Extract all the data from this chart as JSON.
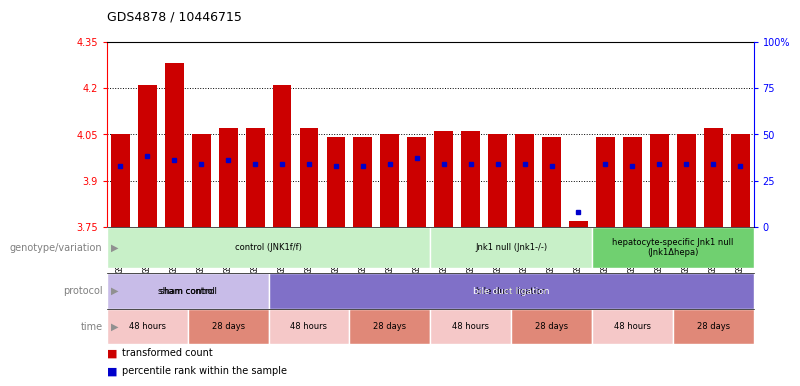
{
  "title": "GDS4878 / 10446715",
  "samples": [
    "GSM984189",
    "GSM984190",
    "GSM984191",
    "GSM984177",
    "GSM984178",
    "GSM984179",
    "GSM984180",
    "GSM984181",
    "GSM984182",
    "GSM984168",
    "GSM984169",
    "GSM984170",
    "GSM984183",
    "GSM984184",
    "GSM984185",
    "GSM984171",
    "GSM984172",
    "GSM984173",
    "GSM984186",
    "GSM984187",
    "GSM984188",
    "GSM984174",
    "GSM984175",
    "GSM984176"
  ],
  "bar_values": [
    4.05,
    4.21,
    4.28,
    4.05,
    4.07,
    4.07,
    4.21,
    4.07,
    4.04,
    4.04,
    4.05,
    4.04,
    4.06,
    4.06,
    4.05,
    4.05,
    4.04,
    3.77,
    4.04,
    4.04,
    4.05,
    4.05,
    4.07,
    4.05
  ],
  "blue_percentile": [
    33,
    38,
    36,
    34,
    36,
    34,
    34,
    34,
    33,
    33,
    34,
    37,
    34,
    34,
    34,
    34,
    33,
    8,
    34,
    33,
    34,
    34,
    34,
    33
  ],
  "ymin": 3.75,
  "ymax": 4.35,
  "yticks": [
    3.75,
    3.9,
    4.05,
    4.2,
    4.35
  ],
  "right_yticks": [
    0,
    25,
    50,
    75,
    100
  ],
  "right_ytick_labels": [
    "0",
    "25",
    "50",
    "75",
    "100%"
  ],
  "bar_color": "#cc0000",
  "blue_color": "#0000cc",
  "plot_bg": "#ffffff",
  "genotype_groups": [
    {
      "label": "control (JNK1f/f)",
      "start": 0,
      "end": 11,
      "color": "#c8f0c8"
    },
    {
      "label": "Jnk1 null (Jnk1-/-)",
      "start": 12,
      "end": 17,
      "color": "#c8f0c8"
    },
    {
      "label": "hepatocyte-specific Jnk1 null\n(Jnk1Δhepa)",
      "start": 18,
      "end": 23,
      "color": "#70d070"
    }
  ],
  "protocol_groups": [
    {
      "label": "sham control",
      "start": 0,
      "end": 5,
      "color": "#c8bce8"
    },
    {
      "label": "bile duct ligation",
      "start": 6,
      "end": 23,
      "color": "#8070c8"
    }
  ],
  "time_groups": [
    {
      "label": "48 hours",
      "start": 0,
      "end": 2,
      "color": "#f5c8c8"
    },
    {
      "label": "28 days",
      "start": 3,
      "end": 5,
      "color": "#e08878"
    },
    {
      "label": "48 hours",
      "start": 6,
      "end": 8,
      "color": "#f5c8c8"
    },
    {
      "label": "28 days",
      "start": 9,
      "end": 11,
      "color": "#e08878"
    },
    {
      "label": "48 hours",
      "start": 12,
      "end": 14,
      "color": "#f5c8c8"
    },
    {
      "label": "28 days",
      "start": 15,
      "end": 17,
      "color": "#e08878"
    },
    {
      "label": "48 hours",
      "start": 18,
      "end": 20,
      "color": "#f5c8c8"
    },
    {
      "label": "28 days",
      "start": 21,
      "end": 23,
      "color": "#e08878"
    }
  ],
  "row_labels": [
    "genotype/variation",
    "protocol",
    "time"
  ],
  "legend_items": [
    {
      "label": "transformed count",
      "color": "#cc0000"
    },
    {
      "label": "percentile rank within the sample",
      "color": "#0000cc"
    }
  ]
}
